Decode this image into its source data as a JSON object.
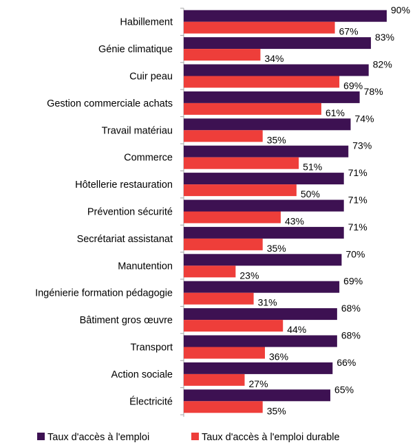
{
  "chart_data": {
    "type": "bar",
    "orientation": "horizontal",
    "title": "",
    "xlabel": "",
    "ylabel": "",
    "xlim": [
      0,
      100
    ],
    "grid": false,
    "legend_position": "bottom",
    "categories": [
      "Habillement",
      "Génie climatique",
      "Cuir peau",
      "Gestion commerciale achats",
      "Travail matériau",
      "Commerce",
      "Hôtellerie restauration",
      "Prévention sécurité",
      "Secrétariat assistanat",
      "Manutention",
      "Ingénierie formation pédagogie",
      "Bâtiment gros œuvre",
      "Transport",
      "Action sociale",
      "Électricité"
    ],
    "series": [
      {
        "name": "Taux d'accès à l'emploi",
        "color": "#3d1152",
        "values": [
          90,
          83,
          82,
          78,
          74,
          73,
          71,
          71,
          71,
          70,
          69,
          68,
          68,
          66,
          65
        ],
        "labels": [
          "90%",
          "83%",
          "82%",
          "78%",
          "74%",
          "73%",
          "71%",
          "71%",
          "71%",
          "70%",
          "69%",
          "68%",
          "68%",
          "66%",
          "65%"
        ]
      },
      {
        "name": "Taux d'accès à l'emploi durable",
        "color": "#ee3e3a",
        "values": [
          67,
          34,
          69,
          61,
          35,
          51,
          50,
          43,
          35,
          23,
          31,
          44,
          36,
          27,
          35
        ],
        "labels": [
          "67%",
          "34%",
          "69%",
          "61%",
          "35%",
          "51%",
          "50%",
          "43%",
          "35%",
          "23%",
          "31%",
          "44%",
          "36%",
          "27%",
          "35%"
        ]
      }
    ]
  }
}
